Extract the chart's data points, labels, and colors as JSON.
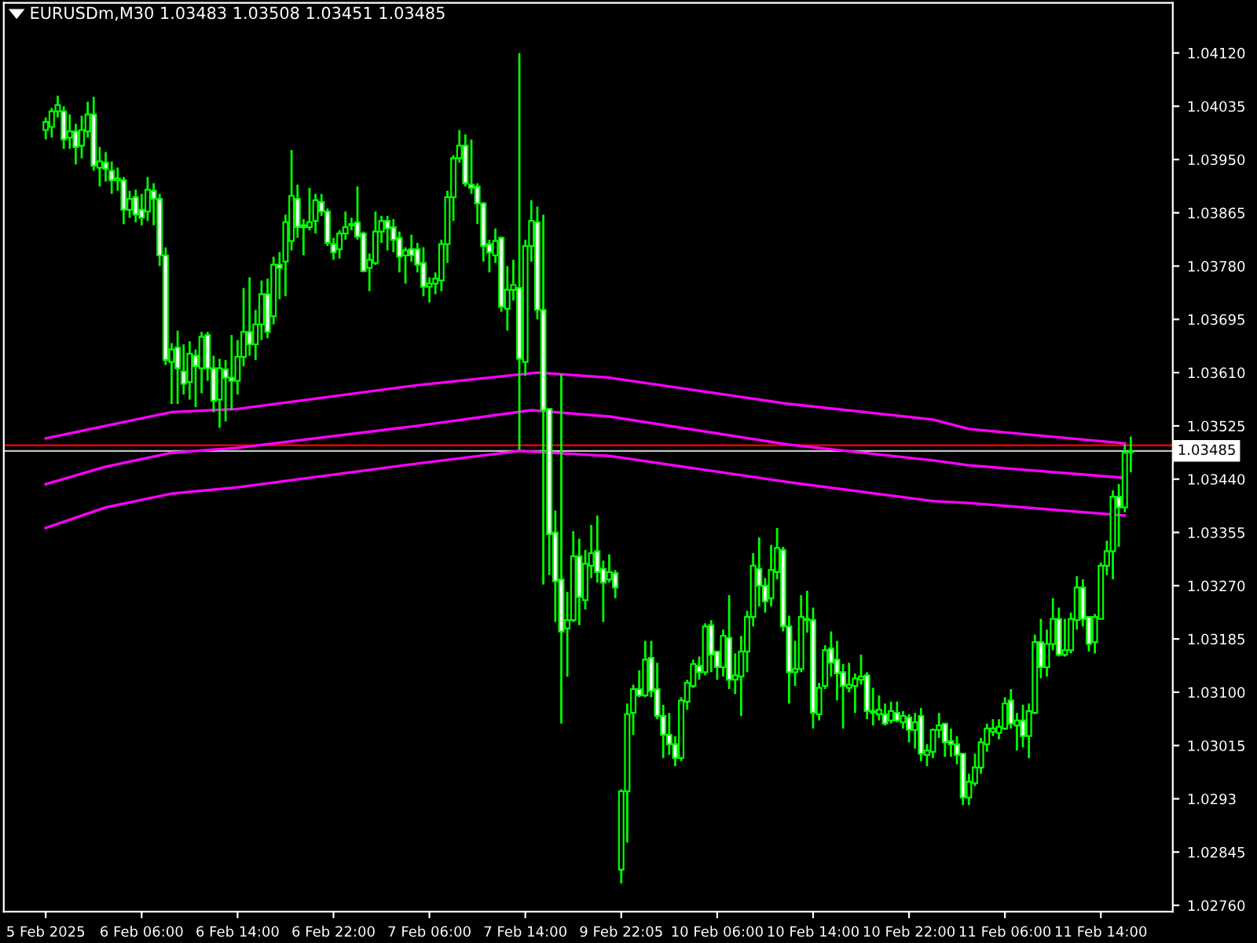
{
  "chart_data": {
    "type": "candlestick",
    "title": "EURUSDm,M30 1.03483 1.03508 1.03451 1.03485",
    "color": "#00ff00",
    "categories": [
      "5 Feb 2025",
      null,
      null,
      null,
      null,
      null,
      null,
      null,
      null,
      null,
      null,
      null,
      null,
      null,
      null,
      null,
      "6 Feb 06:00",
      null,
      null,
      null,
      null,
      null,
      null,
      null,
      null,
      null,
      null,
      null,
      null,
      null,
      null,
      null,
      "6 Feb 14:00",
      null,
      null,
      null,
      null,
      null,
      null,
      null,
      null,
      null,
      null,
      null,
      null,
      null,
      null,
      null,
      "6 Feb 22:00",
      null,
      null,
      null,
      null,
      null,
      null,
      null,
      null,
      null,
      null,
      null,
      null,
      null,
      null,
      null,
      "7 Feb 06:00",
      null,
      null,
      null,
      null,
      null,
      null,
      null,
      null,
      null,
      null,
      null,
      null,
      null,
      null,
      null,
      "7 Feb 14:00",
      null,
      null,
      null,
      null,
      null,
      null,
      null,
      null,
      null,
      null,
      null,
      null,
      null,
      null,
      null,
      "9 Feb 22:05",
      null,
      null,
      null,
      null,
      null,
      null,
      null,
      null,
      null,
      null,
      null,
      null,
      null,
      null,
      null,
      "10 Feb 06:00",
      null,
      null,
      null,
      null,
      null,
      null,
      null,
      null,
      null,
      null,
      null,
      null,
      null,
      null,
      null,
      "10 Feb 14:00",
      null,
      null,
      null,
      null,
      null,
      null,
      null,
      null,
      null,
      null,
      null,
      null,
      null,
      null,
      null,
      "10 Feb 22:00",
      null,
      null,
      null,
      null,
      null,
      null,
      null,
      null,
      null,
      null,
      null,
      null,
      null,
      null,
      null,
      "11 Feb 06:00",
      null,
      null,
      null,
      null,
      null,
      null,
      null,
      null,
      null,
      null,
      null,
      null,
      null,
      null,
      null,
      "11 Feb 14:00",
      null,
      null,
      null,
      null,
      null
    ],
    "ohlc": [
      [
        1.03997,
        1.04017,
        1.03982,
        1.0401
      ],
      [
        1.04002,
        1.04032,
        1.03985,
        1.04027
      ],
      [
        1.04027,
        1.04052,
        1.04017,
        1.04037
      ],
      [
        1.04027,
        1.04035,
        1.03967,
        1.03982
      ],
      [
        1.03985,
        1.04022,
        1.03967,
        1.03995
      ],
      [
        1.03995,
        1.04007,
        1.03942,
        1.0397
      ],
      [
        1.03972,
        1.0402,
        1.03952,
        1.03997
      ],
      [
        1.03995,
        1.04042,
        1.03985,
        1.04022
      ],
      [
        1.04022,
        1.0405,
        1.03932,
        1.0394
      ],
      [
        1.03937,
        1.0397,
        1.03907,
        1.03947
      ],
      [
        1.03945,
        1.03962,
        1.03915,
        1.03935
      ],
      [
        1.03932,
        1.03947,
        1.03895,
        1.03917
      ],
      [
        1.03917,
        1.03937,
        1.039,
        1.0392
      ],
      [
        1.03917,
        1.03922,
        1.03847,
        1.0387
      ],
      [
        1.0387,
        1.039,
        1.03857,
        1.03887
      ],
      [
        1.0389,
        1.03902,
        1.0385,
        1.03862
      ],
      [
        1.0387,
        1.03895,
        1.03845,
        1.03857
      ],
      [
        1.03867,
        1.03922,
        1.03852,
        1.03902
      ],
      [
        1.039,
        1.03912,
        1.03845,
        1.03887
      ],
      [
        1.03887,
        1.03895,
        1.0378,
        1.03797
      ],
      [
        1.03797,
        1.0381,
        1.03622,
        1.0363
      ],
      [
        1.03627,
        1.03657,
        1.0356,
        1.03647
      ],
      [
        1.0365,
        1.03677,
        1.0356,
        1.03617
      ],
      [
        1.03612,
        1.03655,
        1.03575,
        1.03592
      ],
      [
        1.03595,
        1.0366,
        1.03567,
        1.0364
      ],
      [
        1.03637,
        1.03647,
        1.03555,
        1.0362
      ],
      [
        1.03617,
        1.03675,
        1.03577,
        1.03667
      ],
      [
        1.0367,
        1.03675,
        1.03597,
        1.03617
      ],
      [
        1.03617,
        1.03637,
        1.03547,
        1.03565
      ],
      [
        1.03567,
        1.03632,
        1.03522,
        1.03617
      ],
      [
        1.03615,
        1.0363,
        1.03532,
        1.03602
      ],
      [
        1.03602,
        1.0367,
        1.0355,
        1.03597
      ],
      [
        1.03597,
        1.03662,
        1.03575,
        1.03635
      ],
      [
        1.03635,
        1.03745,
        1.0362,
        1.03675
      ],
      [
        1.03675,
        1.03762,
        1.03637,
        1.03655
      ],
      [
        1.03655,
        1.0371,
        1.0363,
        1.03687
      ],
      [
        1.03687,
        1.03757,
        1.03662,
        1.03735
      ],
      [
        1.03735,
        1.0376,
        1.03665,
        1.03675
      ],
      [
        1.037,
        1.03795,
        1.03687,
        1.03782
      ],
      [
        1.03782,
        1.03802,
        1.03727,
        1.03777
      ],
      [
        1.03787,
        1.03862,
        1.03732,
        1.0385
      ],
      [
        1.0382,
        1.03965,
        1.03805,
        1.03892
      ],
      [
        1.03887,
        1.0391,
        1.03825,
        1.03842
      ],
      [
        1.03845,
        1.03855,
        1.03797,
        1.03842
      ],
      [
        1.03842,
        1.03905,
        1.03837,
        1.0385
      ],
      [
        1.03852,
        1.03895,
        1.03832,
        1.03885
      ],
      [
        1.03882,
        1.03895,
        1.0386,
        1.03867
      ],
      [
        1.03867,
        1.03872,
        1.03812,
        1.03817
      ],
      [
        1.03815,
        1.03825,
        1.0379,
        1.03802
      ],
      [
        1.03807,
        1.03837,
        1.03792,
        1.03832
      ],
      [
        1.03832,
        1.03867,
        1.03822,
        1.03842
      ],
      [
        1.03847,
        1.03857,
        1.03837,
        1.03845
      ],
      [
        1.0385,
        1.03907,
        1.03822,
        1.03827
      ],
      [
        1.03832,
        1.03835,
        1.0377,
        1.03772
      ],
      [
        1.03777,
        1.038,
        1.0374,
        1.0379
      ],
      [
        1.03785,
        1.03867,
        1.03782,
        1.03835
      ],
      [
        1.03835,
        1.0386,
        1.03817,
        1.03852
      ],
      [
        1.03852,
        1.0386,
        1.03805,
        1.0384
      ],
      [
        1.03842,
        1.03855,
        1.03802,
        1.03822
      ],
      [
        1.03825,
        1.03835,
        1.0377,
        1.03795
      ],
      [
        1.03797,
        1.0381,
        1.03752,
        1.03805
      ],
      [
        1.03807,
        1.0383,
        1.03787,
        1.03797
      ],
      [
        1.03807,
        1.03817,
        1.0377,
        1.03782
      ],
      [
        1.03785,
        1.0381,
        1.03732,
        1.03747
      ],
      [
        1.03747,
        1.03762,
        1.03722,
        1.03752
      ],
      [
        1.03752,
        1.0377,
        1.03735,
        1.0376
      ],
      [
        1.03757,
        1.03822,
        1.0374,
        1.03815
      ],
      [
        1.03815,
        1.039,
        1.03785,
        1.0389
      ],
      [
        1.0389,
        1.03957,
        1.03852,
        1.03952
      ],
      [
        1.03952,
        1.03997,
        1.03945,
        1.03972
      ],
      [
        1.03972,
        1.0399,
        1.03907,
        1.03912
      ],
      [
        1.0391,
        1.03982,
        1.03895,
        1.03905
      ],
      [
        1.03907,
        1.03912,
        1.03847,
        1.0388
      ],
      [
        1.0388,
        1.03882,
        1.03787,
        1.03812
      ],
      [
        1.03815,
        1.03822,
        1.0377,
        1.03802
      ],
      [
        1.03797,
        1.0384,
        1.03785,
        1.0382
      ],
      [
        1.03825,
        1.03827,
        1.03707,
        1.03715
      ],
      [
        1.03712,
        1.0378,
        1.03677,
        1.03742
      ],
      [
        1.03742,
        1.0379,
        1.03725,
        1.0375
      ],
      [
        1.03745,
        1.0412,
        1.03487,
        1.03632
      ],
      [
        1.03627,
        1.03822,
        1.03605,
        1.03812
      ],
      [
        1.03812,
        1.03885,
        1.03787,
        1.03852
      ],
      [
        1.0385,
        1.03875,
        1.03695,
        1.0371
      ],
      [
        1.0371,
        1.03862,
        1.03272,
        1.0355
      ],
      [
        1.03552,
        1.03552,
        1.03287,
        1.03352
      ],
      [
        1.03355,
        1.0339,
        1.03212,
        1.03277
      ],
      [
        1.0328,
        1.03607,
        1.0305,
        1.03197
      ],
      [
        1.03202,
        1.0326,
        1.03125,
        1.03215
      ],
      [
        1.03215,
        1.03357,
        1.03212,
        1.03317
      ],
      [
        1.03317,
        1.03345,
        1.03207,
        1.03252
      ],
      [
        1.03247,
        1.03327,
        1.03232,
        1.03305
      ],
      [
        1.03302,
        1.03367,
        1.03282,
        1.03322
      ],
      [
        1.03325,
        1.03382,
        1.03275,
        1.03292
      ],
      [
        1.03297,
        1.0331,
        1.03212,
        1.03275
      ],
      [
        1.0328,
        1.0332,
        1.03275,
        1.03292
      ],
      [
        1.0329,
        1.03295,
        1.0325,
        1.03267
      ],
      [
        1.02817,
        1.02945,
        1.02795,
        1.02942
      ],
      [
        1.02942,
        1.03082,
        1.0286,
        1.03065
      ],
      [
        1.03067,
        1.03112,
        1.03032,
        1.03105
      ],
      [
        1.03105,
        1.03135,
        1.03092,
        1.03095
      ],
      [
        1.03095,
        1.03182,
        1.03092,
        1.03152
      ],
      [
        1.03155,
        1.03182,
        1.03092,
        1.03102
      ],
      [
        1.03105,
        1.03147,
        1.03057,
        1.03062
      ],
      [
        1.03062,
        1.0308,
        1.02995,
        1.03032
      ],
      [
        1.03032,
        1.03067,
        1.03,
        1.03017
      ],
      [
        1.03017,
        1.0303,
        1.02982,
        1.02995
      ],
      [
        1.02995,
        1.03092,
        1.0299,
        1.03087
      ],
      [
        1.03085,
        1.0312,
        1.03072,
        1.03115
      ],
      [
        1.0311,
        1.03152,
        1.03107,
        1.03145
      ],
      [
        1.03142,
        1.03157,
        1.0312,
        1.03132
      ],
      [
        1.03132,
        1.0321,
        1.03127,
        1.03205
      ],
      [
        1.03207,
        1.03215,
        1.03132,
        1.0316
      ],
      [
        1.03165,
        1.03165,
        1.0312,
        1.0314
      ],
      [
        1.0314,
        1.032,
        1.03125,
        1.0319
      ],
      [
        1.03187,
        1.03255,
        1.03105,
        1.0312
      ],
      [
        1.0312,
        1.03162,
        1.03097,
        1.03127
      ],
      [
        1.03125,
        1.0319,
        1.03062,
        1.03165
      ],
      [
        1.03165,
        1.0323,
        1.03132,
        1.0322
      ],
      [
        1.0322,
        1.03322,
        1.03205,
        1.03302
      ],
      [
        1.03297,
        1.03347,
        1.03237,
        1.0327
      ],
      [
        1.0327,
        1.03282,
        1.03227,
        1.03245
      ],
      [
        1.0325,
        1.03335,
        1.03237,
        1.03295
      ],
      [
        1.03292,
        1.03362,
        1.0328,
        1.0333
      ],
      [
        1.03327,
        1.03332,
        1.03197,
        1.03205
      ],
      [
        1.03205,
        1.03222,
        1.03082,
        1.03132
      ],
      [
        1.03132,
        1.03182,
        1.0311,
        1.03137
      ],
      [
        1.03137,
        1.03255,
        1.03132,
        1.0322
      ],
      [
        1.03217,
        1.03262,
        1.03195,
        1.03215
      ],
      [
        1.03215,
        1.03235,
        1.03042,
        1.03067
      ],
      [
        1.03065,
        1.03115,
        1.03055,
        1.03107
      ],
      [
        1.0311,
        1.03175,
        1.03105,
        1.03167
      ],
      [
        1.0317,
        1.03197,
        1.03125,
        1.03147
      ],
      [
        1.03152,
        1.03182,
        1.03087,
        1.0313
      ],
      [
        1.03132,
        1.03145,
        1.03042,
        1.0311
      ],
      [
        1.03107,
        1.03147,
        1.031,
        1.03112
      ],
      [
        1.0311,
        1.0313,
        1.03067,
        1.03122
      ],
      [
        1.0312,
        1.0316,
        1.03112,
        1.03125
      ],
      [
        1.03127,
        1.03132,
        1.03057,
        1.0307
      ],
      [
        1.0307,
        1.03107,
        1.03047,
        1.03067
      ],
      [
        1.03065,
        1.03095,
        1.03055,
        1.03072
      ],
      [
        1.03065,
        1.03082,
        1.03047,
        1.0305
      ],
      [
        1.03055,
        1.03085,
        1.0305,
        1.0307
      ],
      [
        1.03067,
        1.03085,
        1.03052,
        1.03055
      ],
      [
        1.03052,
        1.0307,
        1.03042,
        1.03062
      ],
      [
        1.0306,
        1.03065,
        1.0302,
        1.0304
      ],
      [
        1.0304,
        1.03067,
        1.0301,
        1.03052
      ],
      [
        1.03062,
        1.03075,
        1.0299,
        1.03002
      ],
      [
        1.03,
        1.03017,
        1.02982,
        1.03007
      ],
      [
        1.03005,
        1.03042,
        1.02995,
        1.0304
      ],
      [
        1.0304,
        1.03067,
        1.03027,
        1.03047
      ],
      [
        1.0305,
        1.0305,
        1.02997,
        1.0302
      ],
      [
        1.03022,
        1.03042,
        1.02997,
        1.03017
      ],
      [
        1.03017,
        1.0303,
        1.02985,
        1.03
      ],
      [
        1.03002,
        1.03002,
        1.0292,
        1.02932
      ],
      [
        1.02932,
        1.0297,
        1.0292,
        1.02957
      ],
      [
        1.02955,
        1.03002,
        1.0295,
        1.0298
      ],
      [
        1.0298,
        1.03027,
        1.0297,
        1.0302
      ],
      [
        1.03017,
        1.0305,
        1.03005,
        1.03042
      ],
      [
        1.03037,
        1.03057,
        1.0303,
        1.03042
      ],
      [
        1.03035,
        1.03057,
        1.03025,
        1.03045
      ],
      [
        1.03042,
        1.03092,
        1.0304,
        1.03082
      ],
      [
        1.03087,
        1.03105,
        1.03042,
        1.0305
      ],
      [
        1.03047,
        1.03067,
        1.03007,
        1.03055
      ],
      [
        1.03055,
        1.0308,
        1.03012,
        1.0303
      ],
      [
        1.0303,
        1.03082,
        1.02995,
        1.0307
      ],
      [
        1.03067,
        1.03192,
        1.03065,
        1.0318
      ],
      [
        1.0318,
        1.03217,
        1.03122,
        1.0314
      ],
      [
        1.0314,
        1.032,
        1.03125,
        1.03177
      ],
      [
        1.03177,
        1.0325,
        1.03167,
        1.03217
      ],
      [
        1.03217,
        1.03235,
        1.03157,
        1.0316
      ],
      [
        1.0316,
        1.03217,
        1.03157,
        1.03167
      ],
      [
        1.03167,
        1.03227,
        1.03162,
        1.03217
      ],
      [
        1.03215,
        1.03285,
        1.032,
        1.03267
      ],
      [
        1.03267,
        1.0328,
        1.03205,
        1.03217
      ],
      [
        1.0322,
        1.0322,
        1.03165,
        1.03177
      ],
      [
        1.0318,
        1.03225,
        1.03162,
        1.0322
      ],
      [
        1.03217,
        1.03307,
        1.03217,
        1.03302
      ],
      [
        1.03302,
        1.03342,
        1.03287,
        1.03325
      ],
      [
        1.03325,
        1.03422,
        1.0328,
        1.03412
      ],
      [
        1.03412,
        1.03432,
        1.03332,
        1.03395
      ],
      [
        1.03395,
        1.03495,
        1.03387,
        1.03482
      ],
      [
        1.03483,
        1.03508,
        1.03451,
        1.03485
      ]
    ],
    "series": [
      {
        "type": "line",
        "color": "#ff00ff",
        "values": [
          1.03505,
          null,
          null,
          null,
          null,
          null,
          null,
          null,
          null,
          null,
          1.03525,
          null,
          null,
          null,
          null,
          null,
          null,
          null,
          null,
          null,
          null,
          1.03547,
          null,
          null,
          null,
          null,
          null,
          null,
          null,
          null,
          null,
          null,
          1.03552,
          null,
          null,
          null,
          null,
          null,
          null,
          null,
          null,
          null,
          null,
          null,
          null,
          null,
          null,
          null,
          null,
          null,
          null,
          null,
          null,
          null,
          null,
          null,
          null,
          null,
          null,
          null,
          null,
          null,
          1.0359,
          null,
          null,
          null,
          null,
          null,
          null,
          null,
          null,
          null,
          null,
          null,
          null,
          null,
          null,
          null,
          null,
          null,
          null,
          null,
          1.0361,
          null,
          null,
          null,
          null,
          null,
          null,
          null,
          null,
          null,
          null,
          null,
          1.03602,
          null,
          null,
          null,
          null,
          null,
          null,
          null,
          null,
          null,
          null,
          null,
          null,
          null,
          null,
          null,
          null,
          null,
          null,
          null,
          null,
          null,
          null,
          null,
          null,
          null,
          null,
          null,
          null,
          null,
          1.0356,
          null,
          null,
          null,
          null,
          null,
          null,
          null,
          null,
          null,
          null,
          null,
          null,
          null,
          null,
          null,
          null,
          null,
          null,
          null,
          null,
          null,
          null,
          null,
          1.03535,
          null,
          null,
          null,
          null,
          null,
          1.0352,
          null,
          null,
          null,
          null,
          null,
          null,
          null,
          null,
          null,
          null,
          null,
          null,
          null,
          null,
          null,
          null,
          null,
          null,
          null,
          null,
          null,
          null,
          null,
          null,
          null,
          1.03497,
          null
        ]
      },
      {
        "type": "line",
        "color": "#ff00ff",
        "values": [
          1.03432,
          null,
          null,
          null,
          null,
          null,
          null,
          null,
          null,
          null,
          1.0346,
          null,
          null,
          null,
          null,
          null,
          null,
          null,
          null,
          null,
          null,
          1.03482,
          null,
          null,
          null,
          null,
          null,
          null,
          null,
          null,
          null,
          null,
          1.0349,
          null,
          null,
          null,
          null,
          null,
          null,
          null,
          null,
          null,
          null,
          null,
          null,
          null,
          null,
          null,
          null,
          null,
          null,
          null,
          null,
          null,
          null,
          null,
          null,
          null,
          null,
          null,
          null,
          null,
          1.03525,
          null,
          null,
          null,
          null,
          null,
          null,
          null,
          null,
          null,
          null,
          null,
          null,
          null,
          null,
          null,
          null,
          null,
          null,
          1.0355,
          null,
          null,
          null,
          null,
          null,
          null,
          null,
          null,
          null,
          null,
          null,
          null,
          1.0354,
          null,
          null,
          null,
          null,
          null,
          null,
          null,
          null,
          null,
          null,
          null,
          null,
          null,
          null,
          null,
          null,
          null,
          null,
          null,
          null,
          null,
          null,
          null,
          null,
          null,
          null,
          null,
          null,
          null,
          1.03495,
          null,
          null,
          null,
          null,
          null,
          null,
          null,
          null,
          null,
          null,
          null,
          null,
          null,
          null,
          null,
          null,
          null,
          null,
          null,
          null,
          null,
          null,
          null,
          1.0347,
          null,
          null,
          null,
          null,
          null,
          1.03462,
          null,
          null,
          null,
          null,
          null,
          null,
          null,
          null,
          null,
          null,
          null,
          null,
          null,
          null,
          null,
          null,
          null,
          null,
          null,
          null,
          null,
          null,
          null,
          null,
          null,
          1.03442,
          null
        ]
      },
      {
        "type": "line",
        "color": "#ff00ff",
        "values": [
          1.03362,
          null,
          null,
          null,
          null,
          null,
          null,
          null,
          null,
          null,
          1.03395,
          null,
          null,
          null,
          null,
          null,
          null,
          null,
          null,
          null,
          null,
          1.03417,
          null,
          null,
          null,
          null,
          null,
          null,
          null,
          null,
          null,
          null,
          1.03427,
          null,
          null,
          null,
          null,
          null,
          null,
          null,
          null,
          null,
          null,
          null,
          null,
          null,
          null,
          null,
          null,
          null,
          null,
          null,
          null,
          null,
          null,
          null,
          null,
          null,
          null,
          null,
          null,
          null,
          1.03465,
          null,
          null,
          null,
          null,
          null,
          null,
          null,
          null,
          null,
          null,
          null,
          null,
          null,
          null,
          null,
          null,
          1.03485,
          null,
          null,
          null,
          null,
          null,
          null,
          null,
          null,
          null,
          null,
          null,
          null,
          null,
          null,
          1.03477,
          null,
          null,
          null,
          null,
          null,
          null,
          null,
          null,
          null,
          null,
          null,
          null,
          null,
          null,
          null,
          null,
          null,
          null,
          null,
          null,
          null,
          null,
          null,
          null,
          null,
          null,
          null,
          null,
          null,
          1.03435,
          null,
          null,
          null,
          null,
          null,
          null,
          null,
          null,
          null,
          null,
          null,
          null,
          null,
          null,
          null,
          null,
          null,
          null,
          null,
          null,
          null,
          null,
          null,
          1.03405,
          null,
          null,
          null,
          null,
          null,
          1.03402,
          null,
          null,
          null,
          null,
          null,
          null,
          null,
          null,
          null,
          null,
          null,
          null,
          null,
          null,
          null,
          null,
          null,
          null,
          null,
          null,
          null,
          null,
          null,
          null,
          null,
          1.03382,
          null
        ]
      }
    ],
    "ylim": [
      1.0275,
      1.042
    ],
    "yticks": [
      {
        "value": 1.0276,
        "label": "1.02760"
      },
      1.02845,
      1.0293,
      1.03015,
      {
        "value": 1.031,
        "label": "1.03100"
      },
      1.03185,
      {
        "value": 1.0327,
        "label": "1.03270"
      },
      1.03355,
      {
        "value": 1.0344,
        "label": "1.03440"
      },
      1.03525,
      {
        "value": 1.0361,
        "label": "1.03610"
      },
      1.03695,
      {
        "value": 1.0378,
        "label": "1.03780"
      },
      1.03865,
      {
        "value": 1.0395,
        "label": "1.03950"
      },
      1.04035,
      {
        "value": 1.0412,
        "label": "1.04120"
      }
    ],
    "ref_lines": [
      {
        "axis": "y",
        "value": 1.03494,
        "color": "#ff0000"
      },
      {
        "axis": "y",
        "value": 1.03485,
        "label": "1.03485",
        "color": "#c0c0c0"
      }
    ]
  }
}
